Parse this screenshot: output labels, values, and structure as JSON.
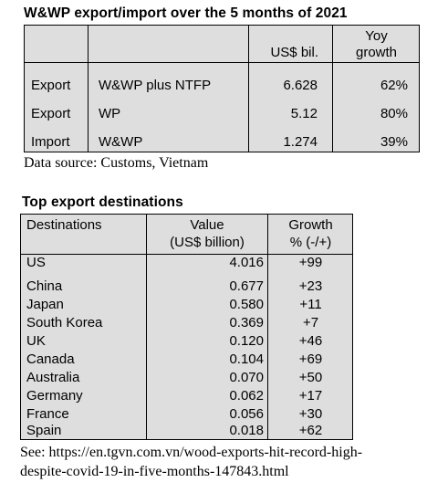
{
  "export_import": {
    "title": "W&WP export/import over the 5 months of 2021",
    "header_value": "US$ bil.",
    "header_growth_line1": "Yoy",
    "header_growth_line2": "growth",
    "rows": [
      {
        "type": "Export",
        "product": "W&WP plus NTFP",
        "value": "6.628",
        "growth": "62%"
      },
      {
        "type": "Export",
        "product": "WP",
        "value": "5.12",
        "growth": "80%"
      },
      {
        "type": "Import",
        "product": "W&WP",
        "value": "1.274",
        "growth": "39%"
      }
    ],
    "source": "Data source: Customs, Vietnam"
  },
  "destinations": {
    "title": "Top export destinations",
    "header_dest": "Destinations",
    "header_value_line1": "Value",
    "header_value_line2": "(US$ billion)",
    "header_growth_line1": "Growth",
    "header_growth_line2": "% (-/+)",
    "rows": [
      {
        "country": "US",
        "value": "4.016",
        "growth": "+99"
      },
      {
        "country": "China",
        "value": "0.677",
        "growth": "+23"
      },
      {
        "country": "Japan",
        "value": "0.580",
        "growth": "+11"
      },
      {
        "country": "South Korea",
        "value": "0.369",
        "growth": "+7"
      },
      {
        "country": "UK",
        "value": "0.120",
        "growth": "+46"
      },
      {
        "country": "Canada",
        "value": "0.104",
        "growth": "+69"
      },
      {
        "country": "Australia",
        "value": "0.070",
        "growth": "+50"
      },
      {
        "country": "Germany",
        "value": "0.062",
        "growth": "+17"
      },
      {
        "country": "France",
        "value": "0.056",
        "growth": "+30"
      },
      {
        "country": "Spain",
        "value": "0.018",
        "growth": "+62"
      }
    ],
    "source_line1": "See: https://en.tgvn.com.vn/wood-exports-hit-record-high-",
    "source_line2": "despite-covid-19-in-five-months-147843.html"
  }
}
